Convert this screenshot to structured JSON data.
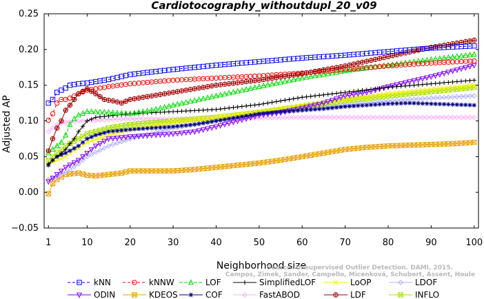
{
  "chart_data": {
    "type": "line",
    "title": "Cardiotocography_withoutdupl_20_v09",
    "xlabel": "Neighborhood size",
    "ylabel": "Adjusted AP",
    "xlim": [
      0,
      101
    ],
    "ylim": [
      -0.05,
      0.25
    ],
    "xticks": [
      1,
      10,
      20,
      30,
      40,
      50,
      60,
      70,
      80,
      90,
      100
    ],
    "yticks": [
      -0.05,
      0.0,
      0.05,
      0.1,
      0.15,
      0.2,
      0.25
    ],
    "ytick_labels": [
      "−0.05",
      "0.00",
      "0.05",
      "0.10",
      "0.15",
      "0.20",
      "0.25"
    ],
    "grid": false,
    "legend_position": "bottom",
    "watermark": [
      "Source: Unsupervised Outlier Detection. DAMI, 2015.",
      "Campos, Zimek, Sander, Campello, Micenková, Schubert, Assent, Houle"
    ],
    "series": [
      {
        "name": "kNN",
        "color": "#0000ff",
        "marker": "square",
        "dash": "4,3",
        "points": [
          [
            1,
            0.125
          ],
          [
            2,
            0.13
          ],
          [
            3,
            0.14
          ],
          [
            4,
            0.143
          ],
          [
            5,
            0.146
          ],
          [
            6,
            0.15
          ],
          [
            7,
            0.151
          ],
          [
            8,
            0.152
          ],
          [
            10,
            0.153
          ],
          [
            15,
            0.158
          ],
          [
            20,
            0.165
          ],
          [
            30,
            0.172
          ],
          [
            40,
            0.178
          ],
          [
            50,
            0.183
          ],
          [
            60,
            0.188
          ],
          [
            70,
            0.192
          ],
          [
            80,
            0.197
          ],
          [
            90,
            0.202
          ],
          [
            100,
            0.205
          ]
        ]
      },
      {
        "name": "kNNW",
        "color": "#ff0000",
        "marker": "circle",
        "dash": "4,3",
        "points": [
          [
            1,
            0.101
          ],
          [
            2,
            0.11
          ],
          [
            3,
            0.125
          ],
          [
            4,
            0.13
          ],
          [
            5,
            0.13
          ],
          [
            6,
            0.132
          ],
          [
            7,
            0.135
          ],
          [
            8,
            0.138
          ],
          [
            10,
            0.143
          ],
          [
            15,
            0.148
          ],
          [
            20,
            0.152
          ],
          [
            30,
            0.157
          ],
          [
            40,
            0.16
          ],
          [
            50,
            0.163
          ],
          [
            60,
            0.167
          ],
          [
            70,
            0.172
          ],
          [
            80,
            0.177
          ],
          [
            90,
            0.181
          ],
          [
            100,
            0.184
          ]
        ]
      },
      {
        "name": "LOF",
        "color": "#00dd00",
        "marker": "triangle-up",
        "dash": "5,2",
        "points": [
          [
            1,
            0.055
          ],
          [
            2,
            0.06
          ],
          [
            3,
            0.065
          ],
          [
            4,
            0.07
          ],
          [
            5,
            0.08
          ],
          [
            6,
            0.095
          ],
          [
            7,
            0.103
          ],
          [
            8,
            0.108
          ],
          [
            10,
            0.113
          ],
          [
            15,
            0.112
          ],
          [
            20,
            0.11
          ],
          [
            25,
            0.115
          ],
          [
            30,
            0.122
          ],
          [
            40,
            0.135
          ],
          [
            50,
            0.148
          ],
          [
            60,
            0.16
          ],
          [
            70,
            0.17
          ],
          [
            80,
            0.178
          ],
          [
            90,
            0.186
          ],
          [
            100,
            0.193
          ]
        ]
      },
      {
        "name": "SimplifiedLOF",
        "color": "#000000",
        "marker": "plus",
        "dash": "",
        "points": [
          [
            1,
            0.04
          ],
          [
            2,
            0.045
          ],
          [
            3,
            0.05
          ],
          [
            4,
            0.055
          ],
          [
            5,
            0.06
          ],
          [
            6,
            0.068
          ],
          [
            7,
            0.075
          ],
          [
            8,
            0.085
          ],
          [
            10,
            0.1
          ],
          [
            12,
            0.105
          ],
          [
            15,
            0.107
          ],
          [
            20,
            0.11
          ],
          [
            30,
            0.113
          ],
          [
            40,
            0.116
          ],
          [
            50,
            0.123
          ],
          [
            60,
            0.133
          ],
          [
            70,
            0.14
          ],
          [
            80,
            0.147
          ],
          [
            90,
            0.152
          ],
          [
            100,
            0.157
          ]
        ]
      },
      {
        "name": "LoOP",
        "color": "#f0f000",
        "marker": "x",
        "dash": "",
        "points": [
          [
            1,
            0.04
          ],
          [
            2,
            0.042
          ],
          [
            3,
            0.045
          ],
          [
            4,
            0.047
          ],
          [
            5,
            0.05
          ],
          [
            6,
            0.055
          ],
          [
            8,
            0.062
          ],
          [
            10,
            0.07
          ],
          [
            15,
            0.08
          ],
          [
            20,
            0.088
          ],
          [
            30,
            0.098
          ],
          [
            40,
            0.105
          ],
          [
            50,
            0.113
          ],
          [
            60,
            0.122
          ],
          [
            70,
            0.13
          ],
          [
            80,
            0.138
          ],
          [
            90,
            0.144
          ],
          [
            100,
            0.15
          ]
        ]
      },
      {
        "name": "LDOF",
        "color": "#b0b0ff",
        "marker": "diamond",
        "dash": "",
        "points": [
          [
            1,
            0.018
          ],
          [
            3,
            0.022
          ],
          [
            5,
            0.028
          ],
          [
            8,
            0.04
          ],
          [
            10,
            0.05
          ],
          [
            15,
            0.065
          ],
          [
            20,
            0.075
          ],
          [
            30,
            0.09
          ],
          [
            40,
            0.1
          ],
          [
            50,
            0.108
          ],
          [
            60,
            0.115
          ],
          [
            70,
            0.122
          ],
          [
            80,
            0.128
          ],
          [
            90,
            0.132
          ],
          [
            100,
            0.135
          ]
        ]
      },
      {
        "name": "ODIN",
        "color": "#8000ff",
        "marker": "triangle-down",
        "dash": "",
        "points": [
          [
            1,
            0.015
          ],
          [
            2,
            0.02
          ],
          [
            3,
            0.025
          ],
          [
            5,
            0.035
          ],
          [
            8,
            0.045
          ],
          [
            10,
            0.055
          ],
          [
            12,
            0.065
          ],
          [
            15,
            0.075
          ],
          [
            20,
            0.078
          ],
          [
            25,
            0.08
          ],
          [
            30,
            0.082
          ],
          [
            35,
            0.085
          ],
          [
            40,
            0.092
          ],
          [
            45,
            0.1
          ],
          [
            50,
            0.108
          ],
          [
            55,
            0.112
          ],
          [
            60,
            0.118
          ],
          [
            65,
            0.125
          ],
          [
            70,
            0.135
          ],
          [
            75,
            0.14
          ],
          [
            80,
            0.148
          ],
          [
            85,
            0.155
          ],
          [
            90,
            0.162
          ],
          [
            95,
            0.17
          ],
          [
            100,
            0.178
          ]
        ]
      },
      {
        "name": "KDEOS",
        "color": "#e8a000",
        "marker": "square-x",
        "dash": "",
        "points": [
          [
            1,
            -0.002
          ],
          [
            2,
            0.012
          ],
          [
            3,
            0.018
          ],
          [
            5,
            0.025
          ],
          [
            8,
            0.027
          ],
          [
            10,
            0.024
          ],
          [
            12,
            0.023
          ],
          [
            15,
            0.025
          ],
          [
            18,
            0.027
          ],
          [
            20,
            0.03
          ],
          [
            25,
            0.03
          ],
          [
            30,
            0.03
          ],
          [
            35,
            0.032
          ],
          [
            40,
            0.035
          ],
          [
            45,
            0.038
          ],
          [
            50,
            0.041
          ],
          [
            55,
            0.045
          ],
          [
            60,
            0.05
          ],
          [
            65,
            0.055
          ],
          [
            70,
            0.06
          ],
          [
            75,
            0.063
          ],
          [
            80,
            0.065
          ],
          [
            85,
            0.066
          ],
          [
            90,
            0.067
          ],
          [
            95,
            0.068
          ],
          [
            100,
            0.07
          ]
        ]
      },
      {
        "name": "COF",
        "color": "#000080",
        "marker": "asterisk",
        "dash": "",
        "points": [
          [
            1,
            0.038
          ],
          [
            2,
            0.045
          ],
          [
            3,
            0.05
          ],
          [
            5,
            0.055
          ],
          [
            8,
            0.065
          ],
          [
            10,
            0.075
          ],
          [
            12,
            0.08
          ],
          [
            15,
            0.085
          ],
          [
            20,
            0.088
          ],
          [
            25,
            0.09
          ],
          [
            30,
            0.092
          ],
          [
            35,
            0.095
          ],
          [
            40,
            0.1
          ],
          [
            45,
            0.105
          ],
          [
            50,
            0.11
          ],
          [
            55,
            0.113
          ],
          [
            60,
            0.115
          ],
          [
            65,
            0.117
          ],
          [
            70,
            0.12
          ],
          [
            75,
            0.122
          ],
          [
            80,
            0.124
          ],
          [
            85,
            0.125
          ],
          [
            90,
            0.124
          ],
          [
            95,
            0.123
          ],
          [
            100,
            0.122
          ]
        ]
      },
      {
        "name": "FastABOD",
        "color": "#ffb0ff",
        "marker": "diamond",
        "dash": "",
        "points": [
          [
            1,
            0.085
          ],
          [
            2,
            0.09
          ],
          [
            3,
            0.095
          ],
          [
            5,
            0.098
          ],
          [
            8,
            0.1
          ],
          [
            10,
            0.1
          ],
          [
            15,
            0.102
          ],
          [
            20,
            0.103
          ],
          [
            30,
            0.103
          ],
          [
            40,
            0.104
          ],
          [
            50,
            0.104
          ],
          [
            60,
            0.105
          ],
          [
            70,
            0.105
          ],
          [
            80,
            0.105
          ],
          [
            90,
            0.105
          ],
          [
            100,
            0.105
          ]
        ]
      },
      {
        "name": "LDF",
        "color": "#a00000",
        "marker": "circle-plus",
        "dash": "",
        "points": [
          [
            1,
            0.058
          ],
          [
            2,
            0.075
          ],
          [
            3,
            0.09
          ],
          [
            4,
            0.1
          ],
          [
            5,
            0.115
          ],
          [
            6,
            0.122
          ],
          [
            7,
            0.13
          ],
          [
            8,
            0.138
          ],
          [
            10,
            0.145
          ],
          [
            12,
            0.138
          ],
          [
            14,
            0.13
          ],
          [
            16,
            0.128
          ],
          [
            18,
            0.125
          ],
          [
            20,
            0.13
          ],
          [
            25,
            0.135
          ],
          [
            30,
            0.14
          ],
          [
            40,
            0.15
          ],
          [
            50,
            0.157
          ],
          [
            60,
            0.166
          ],
          [
            70,
            0.177
          ],
          [
            80,
            0.19
          ],
          [
            90,
            0.203
          ],
          [
            100,
            0.213
          ]
        ]
      },
      {
        "name": "INFLO",
        "color": "#a8e000",
        "marker": "square-x",
        "dash": "",
        "points": [
          [
            1,
            0.045
          ],
          [
            2,
            0.05
          ],
          [
            3,
            0.055
          ],
          [
            5,
            0.065
          ],
          [
            8,
            0.075
          ],
          [
            10,
            0.082
          ],
          [
            15,
            0.09
          ],
          [
            20,
            0.095
          ],
          [
            30,
            0.1
          ],
          [
            40,
            0.105
          ],
          [
            50,
            0.112
          ],
          [
            60,
            0.12
          ],
          [
            70,
            0.128
          ],
          [
            80,
            0.135
          ],
          [
            90,
            0.141
          ],
          [
            100,
            0.147
          ]
        ]
      }
    ]
  }
}
